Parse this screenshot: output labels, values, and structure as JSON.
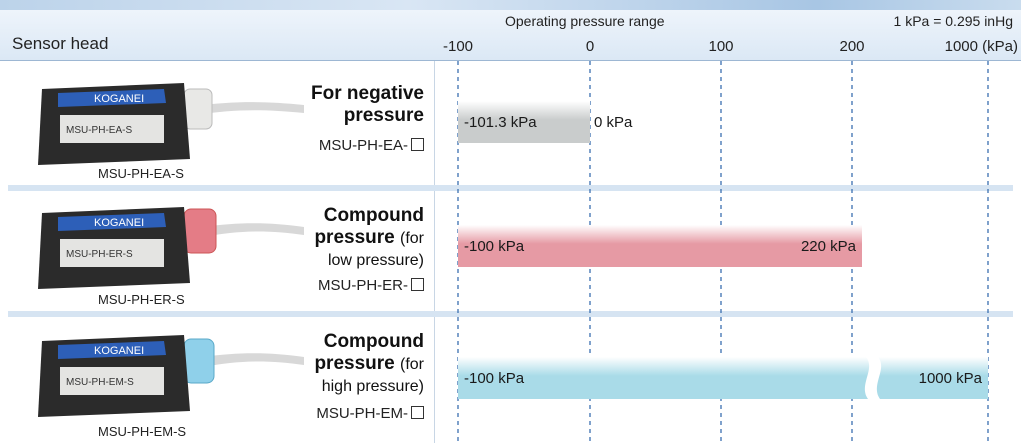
{
  "header": {
    "sensor_head": "Sensor head",
    "range_title": "Operating pressure range",
    "conversion": "1 kPa = 0.295 inHg"
  },
  "chart_data": {
    "type": "bar",
    "x_ticks": [
      "-100",
      "0",
      "100",
      "200",
      "1000 (kPa)"
    ],
    "x_tick_values": [
      -100,
      0,
      100,
      200,
      1000
    ],
    "grid": "vertical dashed",
    "bars": [
      {
        "model": "MSU-PH-EA-S",
        "start": -101.3,
        "end": 0,
        "start_label": "-101.3 kPa",
        "end_label": "0 kPa",
        "color": "#c9cccc",
        "broken": false
      },
      {
        "model": "MSU-PH-ER-S",
        "start": -100,
        "end": 220,
        "start_label": "-100 kPa",
        "end_label": "220 kPa",
        "color": "#e69aa4",
        "broken": false
      },
      {
        "model": "MSU-PH-EM-S",
        "start": -100,
        "end": 1000,
        "start_label": "-100 kPa",
        "end_label": "1000 kPa",
        "color": "#a9dbe8",
        "broken": true
      }
    ]
  },
  "rows": [
    {
      "caption": "MSU-PH-EA-S",
      "title_lines": [
        "For negative",
        "pressure"
      ],
      "subtitle": "",
      "model": "MSU-PH-EA-",
      "cap_color": "#e8e8e6",
      "label_color": "#2d5fb8"
    },
    {
      "caption": "MSU-PH-ER-S",
      "title_lines": [
        "Compound",
        "pressure"
      ],
      "subtitle": "(for low pressure)",
      "model": "MSU-PH-ER-",
      "cap_color": "#e47c86",
      "label_color": "#2d5fb8"
    },
    {
      "caption": "MSU-PH-EM-S",
      "title_lines": [
        "Compound",
        "pressure"
      ],
      "subtitle": "(for high pressure)",
      "model": "MSU-PH-EM-",
      "cap_color": "#8fd0ea",
      "label_color": "#2d5fb8"
    }
  ],
  "logo_text": "KOGANEI"
}
